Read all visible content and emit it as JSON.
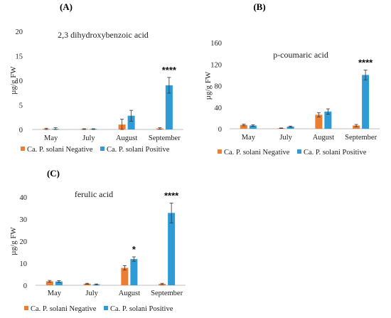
{
  "colors": {
    "negative": "#ED7D31",
    "positive": "#2E9BD6",
    "axis": "#BFBFBF",
    "error": "#333333"
  },
  "chart_data": [
    {
      "panel": "(A)",
      "type": "bar",
      "title": "2,3 dihydroxybenzoic acid",
      "ylabel": "µg/g FW",
      "ylim": [
        0,
        20
      ],
      "yticks": [
        0,
        5,
        10,
        15,
        20
      ],
      "categories": [
        "May",
        "July",
        "August",
        "September"
      ],
      "series": [
        {
          "name": "Ca. P. solani Negative",
          "values": [
            0.1,
            0.05,
            1.0,
            0.2
          ],
          "errors": [
            0.15,
            0.1,
            1.1,
            0.15
          ]
        },
        {
          "name": "Ca. P. solani Positive",
          "values": [
            0.1,
            0.05,
            2.8,
            9.0
          ],
          "errors": [
            0.25,
            0.1,
            1.1,
            1.6
          ]
        }
      ],
      "annotations": [
        {
          "category": "September",
          "series": 1,
          "text": "****"
        }
      ]
    },
    {
      "panel": "(B)",
      "type": "bar",
      "title": "p-coumaric acid",
      "ylabel": "µg/g FW",
      "ylim": [
        0,
        160
      ],
      "yticks": [
        0,
        40,
        80,
        120,
        160
      ],
      "categories": [
        "May",
        "July",
        "August",
        "September"
      ],
      "series": [
        {
          "name": "Ca. P. solani Negative",
          "values": [
            7,
            1,
            26,
            6
          ],
          "errors": [
            1.5,
            0.5,
            4,
            2
          ]
        },
        {
          "name": "Ca. P. solani Positive",
          "values": [
            6,
            4,
            32,
            100
          ],
          "errors": [
            1.5,
            1,
            5,
            9
          ]
        }
      ],
      "annotations": [
        {
          "category": "September",
          "series": 1,
          "text": "****"
        }
      ]
    },
    {
      "panel": "(C)",
      "type": "bar",
      "title": "ferulic acid",
      "ylabel": "µg/g FW",
      "ylim": [
        0,
        40
      ],
      "yticks": [
        0,
        10,
        20,
        30,
        40
      ],
      "categories": [
        "May",
        "July",
        "August",
        "September"
      ],
      "series": [
        {
          "name": "Ca. P. solani Negative",
          "values": [
            1.8,
            0.7,
            7.9,
            0.6
          ],
          "errors": [
            0.4,
            0.2,
            1.0,
            0.3
          ]
        },
        {
          "name": "Ca. P. solani Positive",
          "values": [
            1.7,
            0.4,
            11.9,
            32.8
          ],
          "errors": [
            0.4,
            0.2,
            1.0,
            4.5
          ]
        }
      ],
      "annotations": [
        {
          "category": "August",
          "series": 1,
          "text": "*"
        },
        {
          "category": "September",
          "series": 1,
          "text": "****"
        }
      ]
    }
  ]
}
